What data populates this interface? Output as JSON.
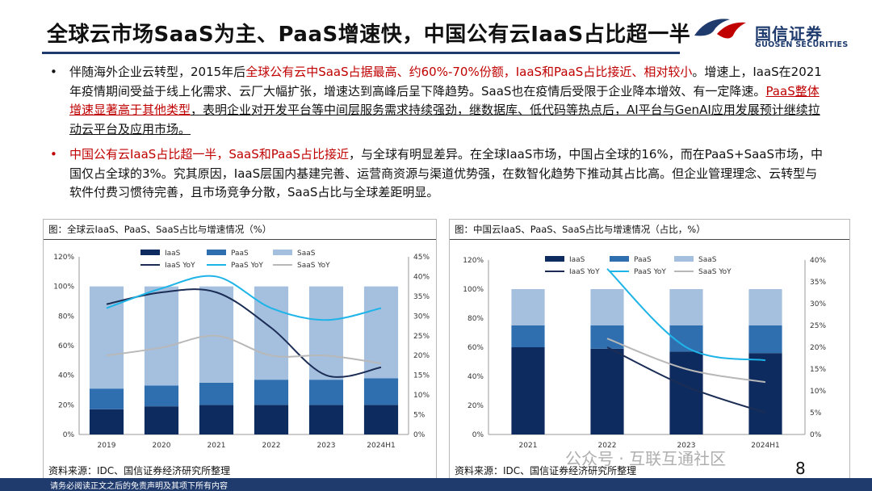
{
  "header": {
    "title": "全球云市场SaaS为主、PaaS增速快，中国公有云IaaS占比超一半",
    "logo_cn": "国信证券",
    "logo_en": "GUOSEN SECURITIES"
  },
  "bullets": [
    {
      "marker": "•",
      "segments": [
        {
          "text": "伴随海外企业云转型，2015年后",
          "style": ""
        },
        {
          "text": "全球公有云中SaaS占据最高、约60%-70%份额，IaaS和PaaS占比接近、相对较小",
          "style": "red"
        },
        {
          "text": "。增速上，IaaS在2021年疫情期间受益于线上化需求、云厂大幅扩张，增速达到高峰后呈下降趋势。SaaS也在疫情后受限于企业降本增效、有一定降速。",
          "style": ""
        },
        {
          "text": "PaaS整体增速显著高于其他类型",
          "style": "red-ul"
        },
        {
          "text": "，表明企业对开发平台等中间层服务需求持续强劲，继数据库、低代码等热点后，AI平台与GenAI应用发展预计继续拉动云平台及应用市场。",
          "style": "ul"
        }
      ]
    },
    {
      "marker": "•",
      "segments": [
        {
          "text": "中国公有云IaaS占比超一半，SaaS和PaaS占比接近",
          "style": "red"
        },
        {
          "text": "，与全球有明显差异。在全球IaaS市场，中国占全球的16%，而在PaaS+SaaS市场，中国仅占全球的3%。究其原因，IaaS层国内基建完善、运营商资源与渠道优势强，在数智化趋势下推动其占比高。但企业管理理念、云转型与软件付费习惯待完善，且市场竞争分散，SaaS占比与全球差距明显。",
          "style": ""
        }
      ]
    }
  ],
  "colors": {
    "navy": "#1f3b6e",
    "iaas": "#0d2b5e",
    "paas": "#2f6fb0",
    "saas": "#a5c0df",
    "iaas_yoy": "#1b2d55",
    "paas_yoy": "#1fb4e8",
    "saas_yoy": "#b8b8b8",
    "red": "#c00000"
  },
  "chart_data": [
    {
      "type": "bar",
      "panel_title": "图：全球云IaaS、PaaS、SaaS占比与增速情况（%）",
      "stacked": true,
      "categories": [
        "2019",
        "2020",
        "2021",
        "2022",
        "2023",
        "2024H1"
      ],
      "series": [
        {
          "name": "IaaS",
          "values": [
            17,
            19,
            20,
            20,
            20,
            20
          ]
        },
        {
          "name": "PaaS",
          "values": [
            14,
            14,
            15,
            17,
            17,
            18
          ]
        },
        {
          "name": "SaaS",
          "values": [
            69,
            67,
            65,
            63,
            63,
            62
          ]
        }
      ],
      "line_series": [
        {
          "name": "IaaS YoY",
          "values": [
            33,
            36,
            36,
            27,
            15,
            17
          ]
        },
        {
          "name": "PaaS YoY",
          "values": [
            32,
            37,
            40,
            32,
            29,
            32
          ]
        },
        {
          "name": "SaaS YoY",
          "values": [
            20,
            22,
            25,
            20,
            20,
            18
          ]
        }
      ],
      "ylim": [
        0,
        120
      ],
      "y_ticks": [
        "0%",
        "20%",
        "40%",
        "60%",
        "80%",
        "100%",
        "120%"
      ],
      "y2lim": [
        0,
        45
      ],
      "y2_ticks": [
        "0%",
        "5%",
        "10%",
        "15%",
        "20%",
        "25%",
        "30%",
        "35%",
        "40%",
        "45%"
      ],
      "legend_position": "top",
      "source": "资料来源：IDC、国信证券经济研究所整理"
    },
    {
      "type": "bar",
      "panel_title": "图：中国云IaaS、PaaS、SaaS占比与增速情况（占比，%）",
      "stacked": true,
      "categories": [
        "2021",
        "2022",
        "2023",
        "2024H1"
      ],
      "series": [
        {
          "name": "IaaS",
          "values": [
            60,
            59,
            57,
            56
          ]
        },
        {
          "name": "PaaS",
          "values": [
            15,
            16,
            18,
            19
          ]
        },
        {
          "name": "SaaS",
          "values": [
            25,
            25,
            25,
            25
          ]
        }
      ],
      "line_series": [
        {
          "name": "IaaS YoY",
          "values": [
            null,
            20,
            11,
            5
          ]
        },
        {
          "name": "PaaS YoY",
          "values": [
            null,
            38,
            20,
            17
          ]
        },
        {
          "name": "SaaS YoY",
          "values": [
            null,
            22,
            15,
            12
          ]
        }
      ],
      "ylim": [
        0,
        120
      ],
      "y_ticks": [
        "0%",
        "20%",
        "40%",
        "60%",
        "80%",
        "100%",
        "120%"
      ],
      "y2lim": [
        0,
        40
      ],
      "y2_ticks": [
        "0%",
        "5%",
        "10%",
        "15%",
        "20%",
        "25%",
        "30%",
        "35%",
        "40%"
      ],
      "legend_position": "top",
      "source": "资料来源：IDC、国信证券经济研究所整理"
    }
  ],
  "footer": {
    "disclaimer": "请务必阅读正文之后的免责声明及其项下所有内容",
    "page_number": "8",
    "watermark": "公众号 · 互联互通社区"
  }
}
